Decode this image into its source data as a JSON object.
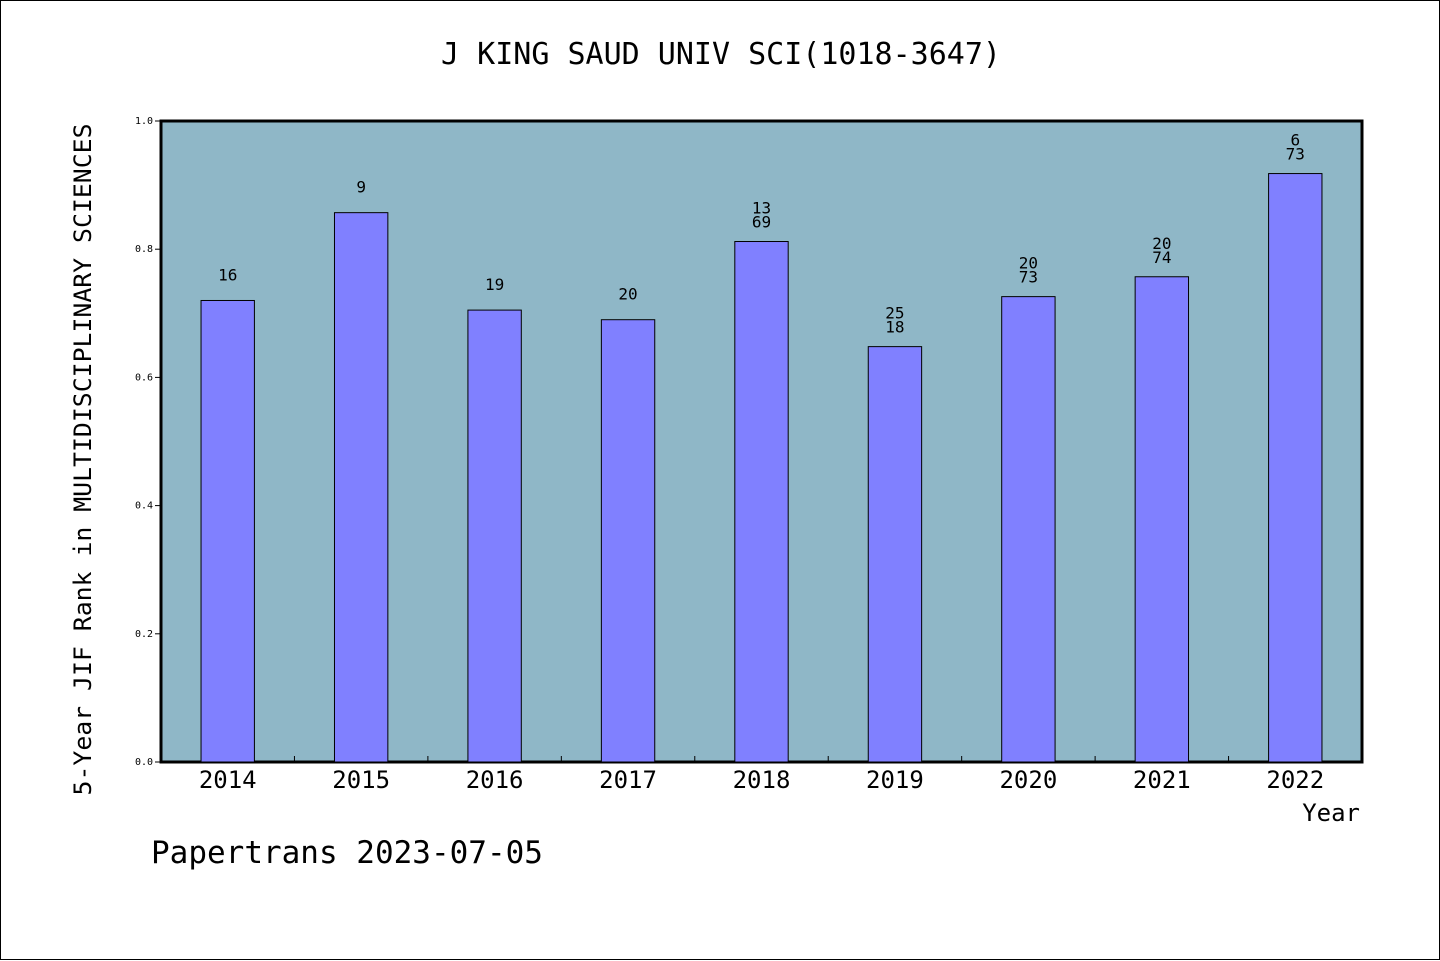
{
  "chart_data": {
    "type": "bar",
    "title": "J KING SAUD UNIV SCI(1018-3647)",
    "xlabel": "Year",
    "ylabel": "5-Year JIF Rank in MULTIDISCIPLINARY SCIENCES",
    "ylim": [
      0,
      1.0
    ],
    "yticks": [
      "0.0",
      "0.2",
      "0.4",
      "0.6",
      "0.8",
      "1.0"
    ],
    "categories": [
      "2014",
      "2015",
      "2016",
      "2017",
      "2018",
      "2019",
      "2020",
      "2021",
      "2022"
    ],
    "values": [
      0.72,
      0.857,
      0.705,
      0.69,
      0.812,
      0.648,
      0.726,
      0.757,
      0.918
    ],
    "rank_labels": [
      [
        "16"
      ],
      [
        "9"
      ],
      [
        "19"
      ],
      [
        "20"
      ],
      [
        "13",
        "69"
      ],
      [
        "25",
        "18"
      ],
      [
        "20",
        "73"
      ],
      [
        "20",
        "74"
      ],
      [
        "6",
        "73"
      ]
    ],
    "grid": false,
    "colors": {
      "plot_background": "#8fb7c7",
      "bar_fill": "#8080ff",
      "bar_stroke": "#000000"
    }
  },
  "footer": {
    "note": "Papertrans 2023-07-05"
  }
}
